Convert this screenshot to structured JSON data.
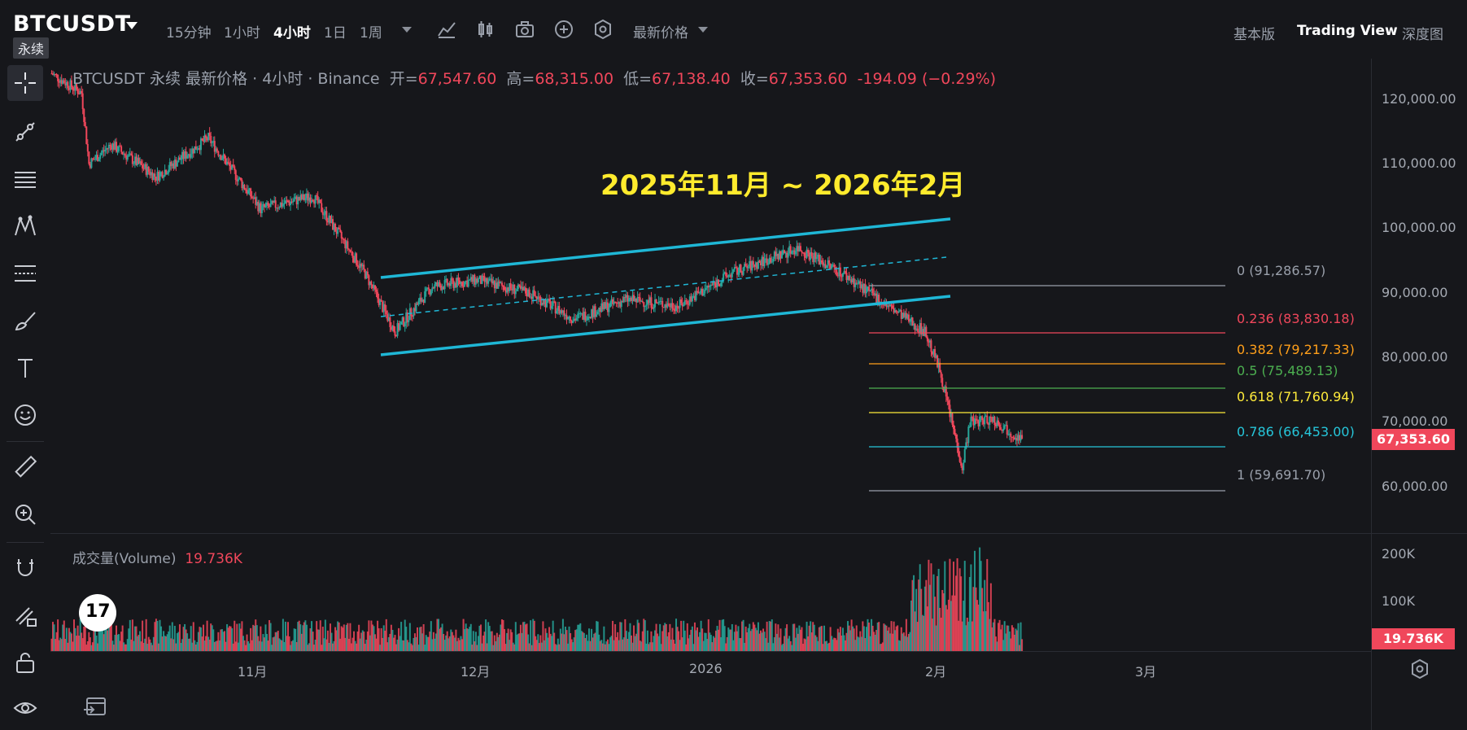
{
  "header": {
    "symbol": "BTCUSDT",
    "perp_badge": "永续",
    "timeframes": [
      "15分钟",
      "1小时",
      "4小时",
      "1日",
      "1周"
    ],
    "active_timeframe": "4小时",
    "price_type": "最新价格",
    "views": [
      "基本版",
      "Trading View",
      "深度图"
    ],
    "active_view": "Trading View"
  },
  "toolbar_icons": [
    "indicators-icon",
    "chart-type-icon",
    "camera-icon",
    "add-icon",
    "settings-icon"
  ],
  "sidebar": {
    "tools": [
      "crosshair-icon",
      "trendline-icon",
      "horizontal-lines-icon",
      "pattern-icon",
      "fib-icon",
      "brush-icon",
      "text-icon",
      "emoji-icon",
      "ruler-icon",
      "zoom-icon",
      "magnet-icon",
      "pencil-lock-icon",
      "unlock-icon",
      "eye-icon"
    ]
  },
  "legend": {
    "title": "BTCUSDT 永续 最新价格 · 4小时 · Binance",
    "open_label": "开=",
    "open": "67,547.60",
    "high_label": "高=",
    "high": "68,315.00",
    "low_label": "低=",
    "low": "67,138.40",
    "close_label": "收=",
    "close": "67,353.60",
    "change": "-194.09 (−0.29%)"
  },
  "annotation": {
    "title": "2025年11月 ~ 2026年2月",
    "color": "#ffeb2d"
  },
  "fib": [
    {
      "label": "0 (91,286.57)",
      "color": "#9aa0ab"
    },
    {
      "label": "0.236 (83,830.18)",
      "color": "#f0475b"
    },
    {
      "label": "0.382 (79,217.33)",
      "color": "#ff9f1a"
    },
    {
      "label": "0.5 (75,489.13)",
      "color": "#4caf50"
    },
    {
      "label": "0.618 (71,760.94)",
      "color": "#ffeb3b"
    },
    {
      "label": "0.786 (66,453.00)",
      "color": "#26c6da"
    },
    {
      "label": "1 (59,691.70)",
      "color": "#9aa0ab"
    }
  ],
  "price_axis": [
    "120,000.00",
    "110,000.00",
    "100,000.00",
    "90,000.00",
    "80,000.00",
    "70,000.00",
    "60,000.00"
  ],
  "last_price": "67,353.60",
  "volume": {
    "legend_label": "成交量(Volume)",
    "value": "19.736K",
    "axis": [
      "200K",
      "100K"
    ],
    "tag": "19.736K"
  },
  "time_axis": [
    "11月",
    "12月",
    "2026",
    "2月",
    "3月"
  ],
  "colors": {
    "up": "#26a69a",
    "down": "#f0475b",
    "channel": "#1fb7d6"
  },
  "chart_data": {
    "type": "line",
    "title": "",
    "xlabel": "",
    "ylabel": "",
    "ylim": [
      55000,
      128000
    ],
    "x": [
      "2025-10-06",
      "2025-10-10",
      "2025-10-11",
      "2025-10-14",
      "2025-10-20",
      "2025-10-27",
      "2025-11-03",
      "2025-11-10",
      "2025-11-17",
      "2025-11-21",
      "2025-11-26",
      "2025-12-02",
      "2025-12-09",
      "2025-12-15",
      "2025-12-22",
      "2025-12-29",
      "2026-01-05",
      "2026-01-14",
      "2026-01-20",
      "2026-01-26",
      "2026-01-31",
      "2026-02-02",
      "2026-02-05",
      "2026-02-06",
      "2026-02-09",
      "2026-02-13"
    ],
    "series": [
      {
        "values": [
          124000,
          121000,
          110000,
          113000,
          108000,
          114000,
          103000,
          105000,
          93000,
          84000,
          91000,
          92000,
          90000,
          86000,
          89000,
          88000,
          93000,
          97000,
          93000,
          88000,
          84000,
          78000,
          63000,
          70000,
          70500,
          67354
        ]
      }
    ]
  }
}
